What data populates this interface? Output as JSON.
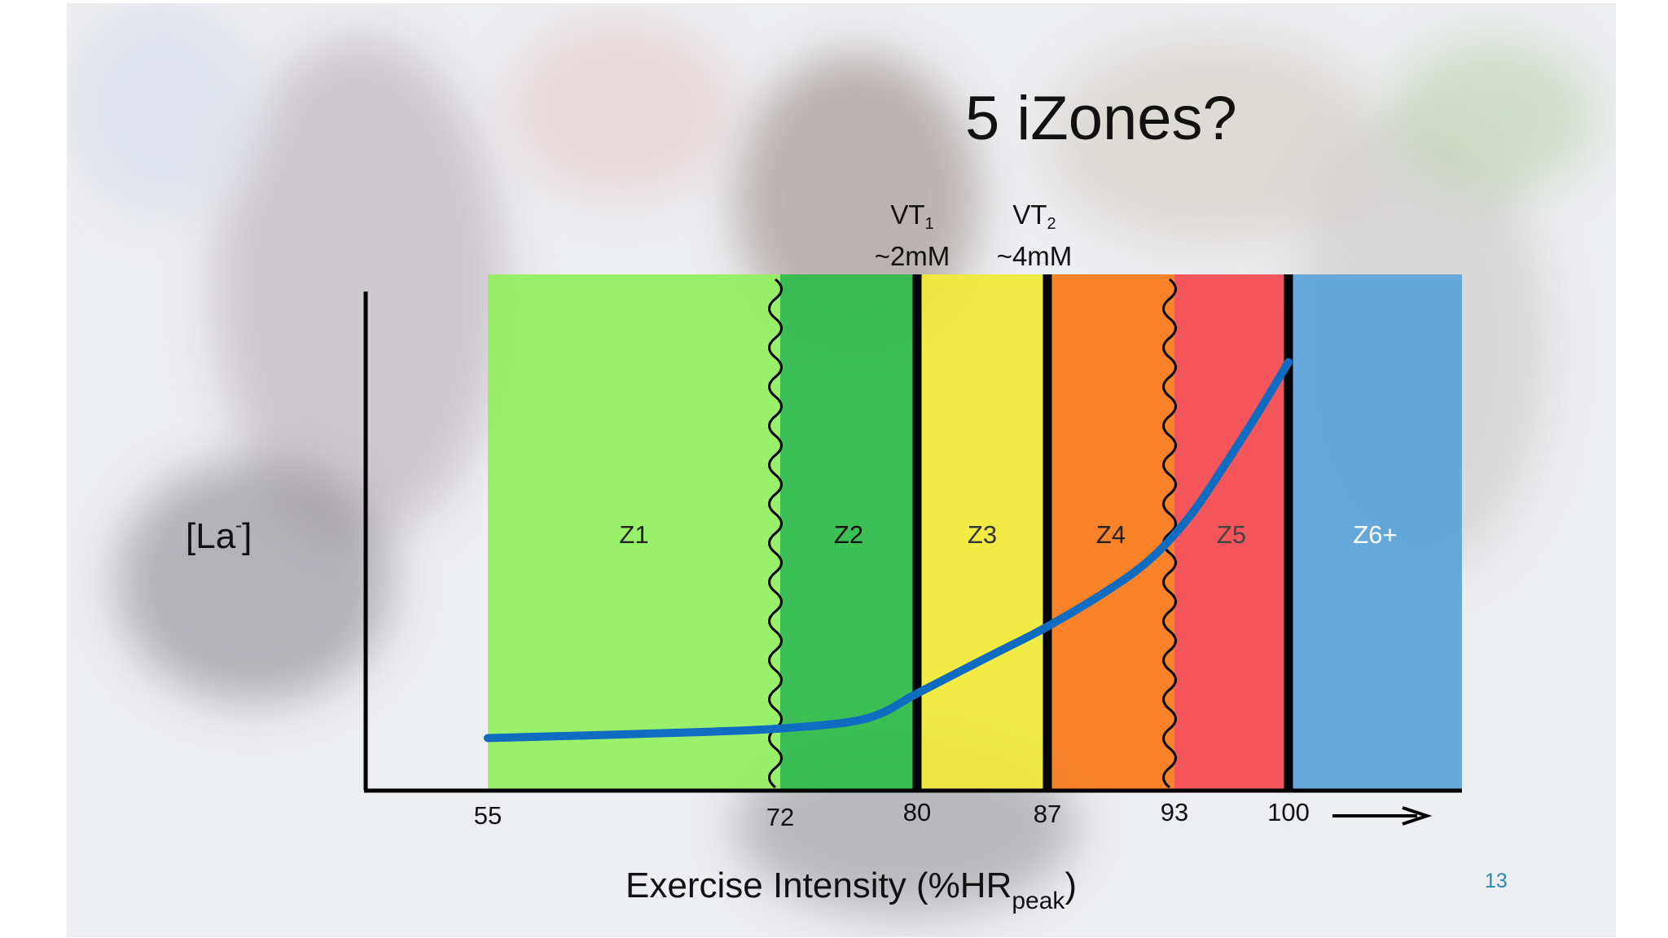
{
  "slide": {
    "title": "5 iZones?",
    "slide_number": "13"
  },
  "colors": {
    "z1": "#94f060",
    "z2": "#2dbb46",
    "z3": "#f2ea37",
    "z4": "#fb7a19",
    "z5": "#f4494f",
    "z6": "#5aa3d8",
    "curve": "#0f6cc0",
    "axis": "#000000"
  },
  "chart_data": {
    "type": "area",
    "title": "5 iZones?",
    "xlabel": {
      "main": "Exercise Intensity (%HR",
      "sub": "peak",
      "close": ")"
    },
    "ylabel": {
      "main": "[La",
      "sup": "-",
      "close": "]"
    },
    "x_ticks": [
      "55",
      "72",
      "80",
      "87",
      "93",
      "100"
    ],
    "x_tick_values": [
      55,
      72,
      80,
      87,
      93,
      100
    ],
    "zones": [
      {
        "label": "Z1",
        "from": 55,
        "to": 72,
        "color": "#94f060"
      },
      {
        "label": "Z2",
        "from": 72,
        "to": 80,
        "color": "#2dbb46"
      },
      {
        "label": "Z3",
        "from": 80,
        "to": 87,
        "color": "#f2ea37"
      },
      {
        "label": "Z4",
        "from": 87,
        "to": 93,
        "color": "#fb7a19"
      },
      {
        "label": "Z5",
        "from": 93,
        "to": 100,
        "color": "#f4494f"
      },
      {
        "label": "Z6+",
        "from": 100,
        "to": 110,
        "color": "#5aa3d8"
      }
    ],
    "thresholds": [
      {
        "name": "VT",
        "sub": "1",
        "value_label": "~2mM",
        "x": 80
      },
      {
        "name": "VT",
        "sub": "2",
        "value_label": "~4mM",
        "x": 87
      }
    ],
    "fuzzy_boundaries": [
      72,
      93
    ],
    "hard_boundaries": [
      80,
      87,
      100
    ],
    "lactate_curve": {
      "x": [
        55,
        62,
        68,
        72,
        76,
        78,
        80,
        84,
        87,
        90,
        92,
        94,
        96,
        98,
        100
      ],
      "y": [
        0.5,
        0.6,
        0.7,
        0.8,
        1.0,
        1.3,
        1.9,
        3.1,
        4.0,
        5.2,
        6.2,
        7.5,
        9.0,
        10.6,
        12.3
      ]
    },
    "ylim": [
      0,
      16
    ],
    "x_arrow": true
  }
}
